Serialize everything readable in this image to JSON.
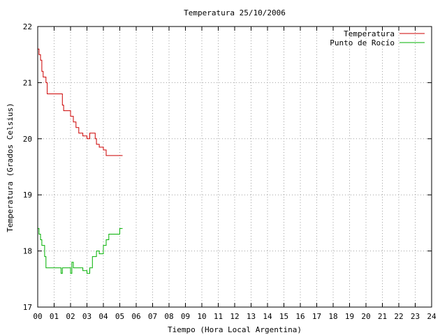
{
  "chart_data": {
    "type": "line",
    "title": "Temperatura 25/10/2006",
    "xlabel": "Tiempo (Hora Local Argentina)",
    "ylabel": "Temperatura (Grados Celsius)",
    "xlim": [
      0,
      24
    ],
    "ylim": [
      17,
      22
    ],
    "x_ticks": [
      0,
      1,
      2,
      3,
      4,
      5,
      6,
      7,
      8,
      9,
      10,
      11,
      12,
      13,
      14,
      15,
      16,
      17,
      18,
      19,
      20,
      21,
      22,
      23,
      24
    ],
    "x_tick_labels": [
      "00",
      "01",
      "02",
      "03",
      "04",
      "05",
      "06",
      "07",
      "08",
      "09",
      "10",
      "11",
      "12",
      "13",
      "14",
      "15",
      "16",
      "17",
      "18",
      "19",
      "20",
      "21",
      "22",
      "23",
      "24"
    ],
    "y_ticks": [
      17,
      18,
      19,
      20,
      21,
      22
    ],
    "y_tick_labels": [
      "17",
      "18",
      "19",
      "20",
      "21",
      "22"
    ],
    "grid": true,
    "legend_position": "top-right",
    "series": [
      {
        "name": "Temperatura",
        "color": "#cc0000",
        "points": [
          [
            0.0,
            21.6
          ],
          [
            0.08,
            21.5
          ],
          [
            0.17,
            21.4
          ],
          [
            0.25,
            21.2
          ],
          [
            0.33,
            21.1
          ],
          [
            0.5,
            21.0
          ],
          [
            0.58,
            20.8
          ],
          [
            0.75,
            20.8
          ],
          [
            1.0,
            20.8
          ],
          [
            1.25,
            20.8
          ],
          [
            1.42,
            20.8
          ],
          [
            1.5,
            20.6
          ],
          [
            1.58,
            20.5
          ],
          [
            1.75,
            20.5
          ],
          [
            2.0,
            20.4
          ],
          [
            2.17,
            20.3
          ],
          [
            2.33,
            20.2
          ],
          [
            2.5,
            20.1
          ],
          [
            2.75,
            20.05
          ],
          [
            3.0,
            20.0
          ],
          [
            3.17,
            20.1
          ],
          [
            3.33,
            20.1
          ],
          [
            3.5,
            20.0
          ],
          [
            3.58,
            19.9
          ],
          [
            3.75,
            19.85
          ],
          [
            4.0,
            19.8
          ],
          [
            4.17,
            19.7
          ],
          [
            4.5,
            19.7
          ],
          [
            4.75,
            19.7
          ],
          [
            5.0,
            19.7
          ],
          [
            5.17,
            19.7
          ]
        ]
      },
      {
        "name": "Punto de Rocío",
        "color": "#00b000",
        "points": [
          [
            0.0,
            18.4
          ],
          [
            0.08,
            18.3
          ],
          [
            0.17,
            18.2
          ],
          [
            0.25,
            18.1
          ],
          [
            0.42,
            17.9
          ],
          [
            0.5,
            17.7
          ],
          [
            0.75,
            17.7
          ],
          [
            1.0,
            17.7
          ],
          [
            1.25,
            17.7
          ],
          [
            1.42,
            17.6
          ],
          [
            1.5,
            17.7
          ],
          [
            1.75,
            17.7
          ],
          [
            2.0,
            17.6
          ],
          [
            2.08,
            17.8
          ],
          [
            2.17,
            17.7
          ],
          [
            2.33,
            17.7
          ],
          [
            2.5,
            17.7
          ],
          [
            2.75,
            17.65
          ],
          [
            3.0,
            17.6
          ],
          [
            3.17,
            17.7
          ],
          [
            3.33,
            17.9
          ],
          [
            3.5,
            17.9
          ],
          [
            3.58,
            18.0
          ],
          [
            3.75,
            17.95
          ],
          [
            4.0,
            18.1
          ],
          [
            4.17,
            18.2
          ],
          [
            4.33,
            18.3
          ],
          [
            4.5,
            18.3
          ],
          [
            4.75,
            18.3
          ],
          [
            5.0,
            18.4
          ],
          [
            5.17,
            18.4
          ]
        ]
      }
    ]
  }
}
